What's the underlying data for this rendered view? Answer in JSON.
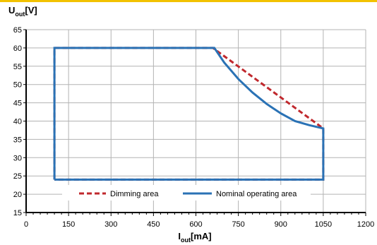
{
  "chart_data": {
    "type": "line",
    "ylabel": {
      "main": "U",
      "sub": "out",
      "unit": "[V]"
    },
    "xlabel": {
      "main": "I",
      "sub": "out",
      "unit": "[mA]"
    },
    "xlim": [
      0,
      1200
    ],
    "ylim": [
      15,
      65
    ],
    "xticks": [
      0,
      150,
      300,
      450,
      600,
      750,
      900,
      1050,
      1200
    ],
    "yticks": [
      15,
      20,
      25,
      30,
      35,
      40,
      45,
      50,
      55,
      60,
      65
    ],
    "grid": true,
    "legend_position": "bottom",
    "series": [
      {
        "name": "Dimming area",
        "color": "#c0282d",
        "style": "dashed",
        "points": [
          [
            100,
            24
          ],
          [
            100,
            60
          ],
          [
            660,
            60
          ],
          [
            1050,
            38
          ],
          [
            1050,
            24
          ],
          [
            100,
            24
          ]
        ]
      },
      {
        "name": "Nominal operating area",
        "color": "#2a72b5",
        "style": "solid",
        "points": [
          [
            100,
            24
          ],
          [
            100,
            60
          ],
          [
            665,
            60
          ],
          [
            700,
            56
          ],
          [
            750,
            51.5
          ],
          [
            800,
            47.8
          ],
          [
            850,
            44.7
          ],
          [
            900,
            42.1
          ],
          [
            950,
            40.0
          ],
          [
            1000,
            38.9
          ],
          [
            1050,
            38
          ],
          [
            1050,
            24
          ],
          [
            100,
            24
          ]
        ]
      }
    ]
  }
}
